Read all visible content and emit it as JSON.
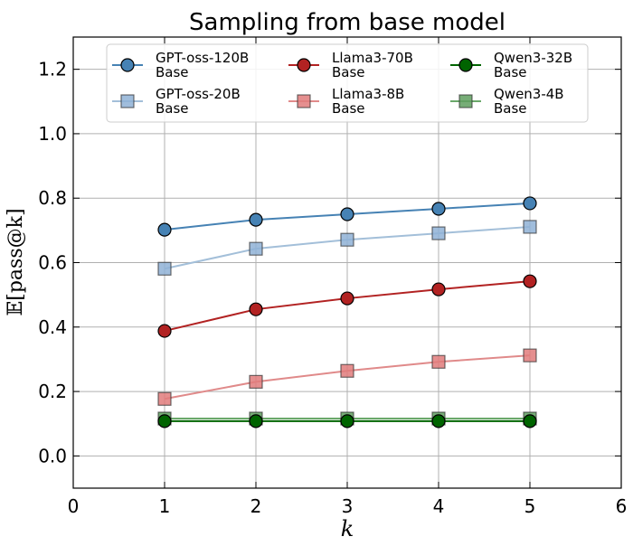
{
  "chart_data": {
    "type": "line",
    "title": "Sampling from base model",
    "xlabel": "k",
    "ylabel": "𝔼[pass@k]",
    "xlim": [
      0,
      6
    ],
    "ylim": [
      -0.1,
      1.3
    ],
    "xticks": [
      "0",
      "1",
      "2",
      "3",
      "4",
      "5",
      "6"
    ],
    "yticks": [
      "0.0",
      "0.2",
      "0.4",
      "0.6",
      "0.8",
      "1.0",
      "1.2"
    ],
    "grid": true,
    "legend_position": "top",
    "x": [
      1,
      2,
      3,
      4,
      5
    ],
    "series": [
      {
        "name": "GPT-oss-120B",
        "name2": "Base",
        "marker": "circle",
        "color": "#4682b4",
        "line_color": "#4682b4",
        "alpha": 1.0,
        "values": [
          0.702,
          0.733,
          0.75,
          0.767,
          0.784
        ]
      },
      {
        "name": "GPT-oss-20B",
        "name2": "Base",
        "marker": "square",
        "color": "#8fb1d6",
        "line_color": "#a3bfd9",
        "alpha": 0.85,
        "values": [
          0.581,
          0.643,
          0.671,
          0.691,
          0.711
        ]
      },
      {
        "name": "Llama3-70B",
        "name2": "Base",
        "marker": "circle",
        "color": "#b22222",
        "line_color": "#b22222",
        "alpha": 1.0,
        "values": [
          0.388,
          0.455,
          0.489,
          0.517,
          0.542
        ]
      },
      {
        "name": "Llama3-8B",
        "name2": "Base",
        "marker": "square",
        "color": "#e07b7b",
        "line_color": "#e08a8a",
        "alpha": 0.85,
        "values": [
          0.177,
          0.23,
          0.264,
          0.292,
          0.312
        ]
      },
      {
        "name": "Qwen3-32B",
        "name2": "Base",
        "marker": "circle",
        "color": "#006400",
        "line_color": "#006400",
        "alpha": 1.0,
        "values": [
          0.108,
          0.108,
          0.108,
          0.108,
          0.108
        ]
      },
      {
        "name": "Qwen3-4B",
        "name2": "Base",
        "marker": "square",
        "color": "#5f9f5f",
        "line_color": "#6aa86a",
        "alpha": 0.85,
        "values": [
          0.116,
          0.116,
          0.116,
          0.116,
          0.116
        ]
      }
    ]
  }
}
